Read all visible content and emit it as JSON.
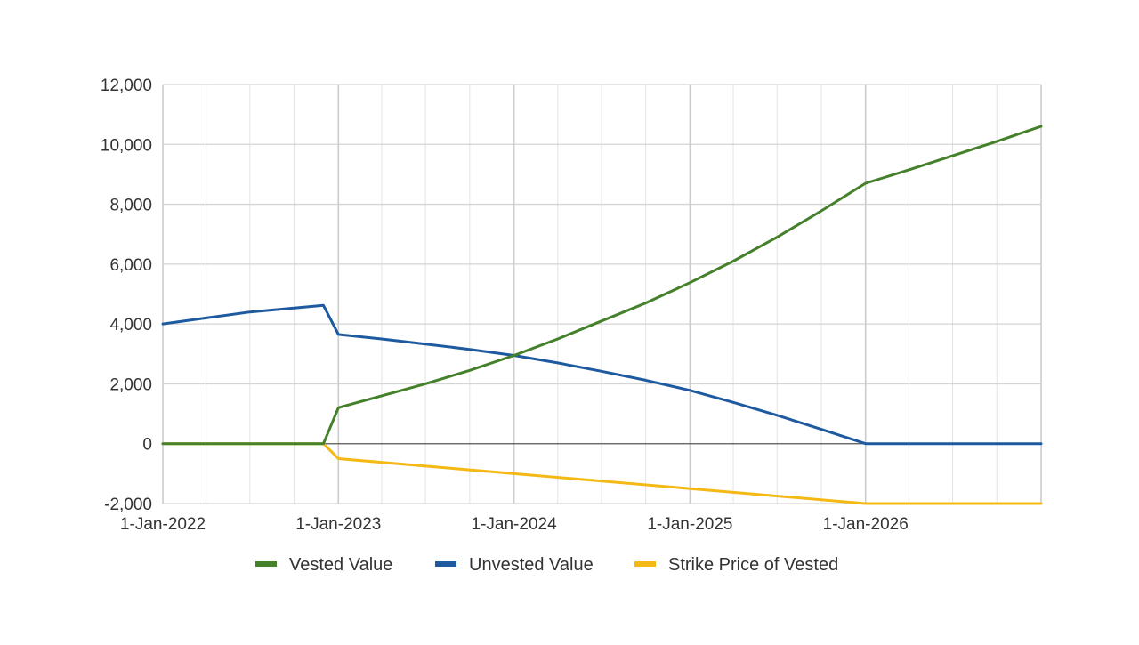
{
  "chart_data": {
    "type": "line",
    "title": "",
    "xlabel": "",
    "ylabel": "",
    "x_ticks": [
      "1-Jan-2022",
      "1-Jan-2023",
      "1-Jan-2024",
      "1-Jan-2025",
      "1-Jan-2026"
    ],
    "y_ticks": [
      "12,000",
      "10,000",
      "8,000",
      "6,000",
      "4,000",
      "2,000",
      "0",
      "-2,000"
    ],
    "xlim": [
      "2022-01-01",
      "2027-01-01"
    ],
    "ylim": [
      -2000,
      12000
    ],
    "grid": true,
    "legend_position": "bottom",
    "series": [
      {
        "name": "Vested Value",
        "color": "#45802b",
        "points": [
          [
            "2022-01-01",
            0
          ],
          [
            "2022-12-01",
            0
          ],
          [
            "2023-01-01",
            1200
          ],
          [
            "2023-04-01",
            1600
          ],
          [
            "2023-07-01",
            2000
          ],
          [
            "2023-10-01",
            2450
          ],
          [
            "2024-01-01",
            2950
          ],
          [
            "2024-04-01",
            3500
          ],
          [
            "2024-07-01",
            4100
          ],
          [
            "2024-10-01",
            4700
          ],
          [
            "2025-01-01",
            5380
          ],
          [
            "2025-04-01",
            6100
          ],
          [
            "2025-07-01",
            6900
          ],
          [
            "2025-10-01",
            7780
          ],
          [
            "2026-01-01",
            8700
          ],
          [
            "2026-04-01",
            9150
          ],
          [
            "2026-07-01",
            9620
          ],
          [
            "2026-10-01",
            10100
          ],
          [
            "2027-01-01",
            10600
          ]
        ]
      },
      {
        "name": "Unvested Value",
        "color": "#1e5aa0",
        "points": [
          [
            "2022-01-01",
            4000
          ],
          [
            "2022-04-01",
            4200
          ],
          [
            "2022-07-01",
            4400
          ],
          [
            "2022-12-01",
            4620
          ],
          [
            "2023-01-01",
            3650
          ],
          [
            "2023-04-01",
            3500
          ],
          [
            "2023-07-01",
            3330
          ],
          [
            "2023-10-01",
            3150
          ],
          [
            "2024-01-01",
            2950
          ],
          [
            "2024-04-01",
            2700
          ],
          [
            "2024-07-01",
            2420
          ],
          [
            "2024-10-01",
            2120
          ],
          [
            "2025-01-01",
            1780
          ],
          [
            "2025-04-01",
            1380
          ],
          [
            "2025-07-01",
            950
          ],
          [
            "2025-10-01",
            480
          ],
          [
            "2026-01-01",
            0
          ],
          [
            "2027-01-01",
            0
          ]
        ]
      },
      {
        "name": "Strike Price of Vested",
        "color": "#f4b915",
        "points": [
          [
            "2022-01-01",
            0
          ],
          [
            "2022-12-01",
            0
          ],
          [
            "2023-01-01",
            -500
          ],
          [
            "2024-01-01",
            -1000
          ],
          [
            "2025-01-01",
            -1500
          ],
          [
            "2026-01-01",
            -2000
          ],
          [
            "2027-01-01",
            -2000
          ]
        ]
      }
    ]
  }
}
